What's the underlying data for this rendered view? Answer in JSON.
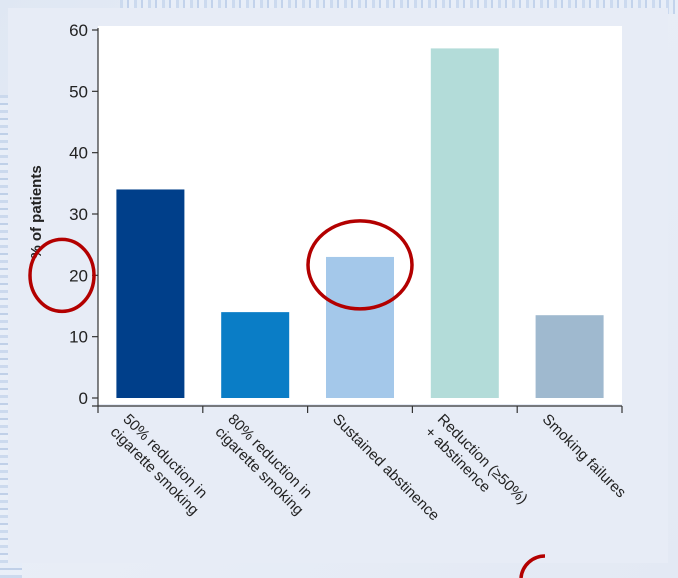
{
  "chart_data": {
    "type": "bar",
    "title": "",
    "xlabel": "",
    "ylabel": "% of patients",
    "ylim": [
      0,
      60
    ],
    "yticks": [
      "0",
      "10",
      "20",
      "30",
      "40",
      "50",
      "60"
    ],
    "grid": false,
    "categories": [
      [
        "50% reduction in",
        "cigarette smoking"
      ],
      [
        "80% reduction in",
        "cigarette smoking"
      ],
      [
        "Sustained abstinence"
      ],
      [
        "Reduction (≥50%)",
        "+ abstinence"
      ],
      [
        "Smoking failures"
      ]
    ],
    "values": [
      34,
      14,
      23,
      57,
      13.5
    ],
    "colors": [
      "#003f8a",
      "#0a7dc6",
      "#a4c8ea",
      "#b3dcd9",
      "#9fb9cf"
    ],
    "annotations": {
      "circle_color": "#b30000",
      "circled_items": [
        "y-tick 20",
        "Sustained abstinence bar top"
      ]
    }
  }
}
